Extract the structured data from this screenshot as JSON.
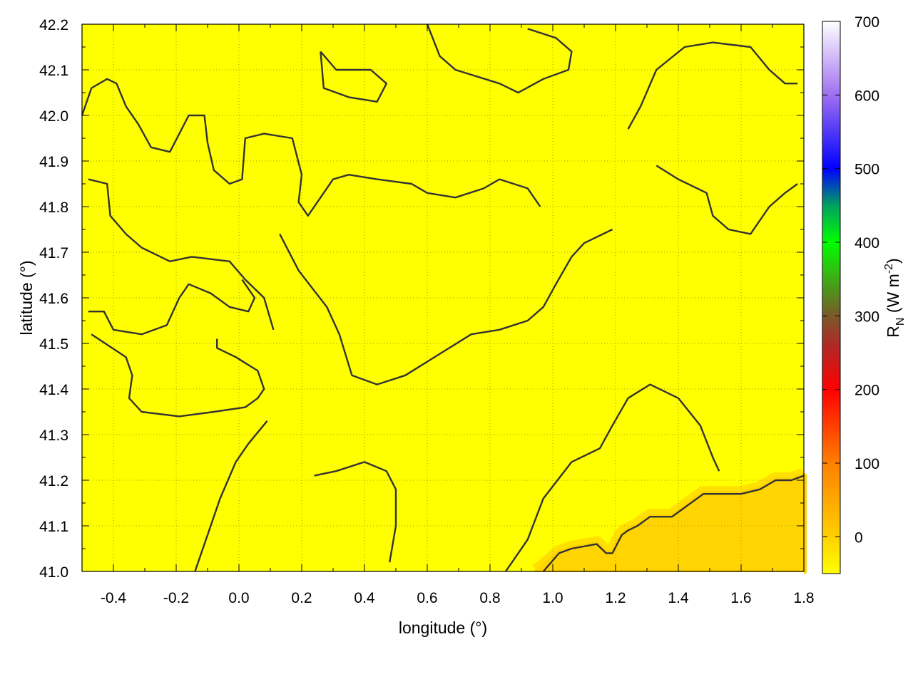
{
  "chart_data": {
    "type": "heatmap",
    "xlabel": "longitude (°)",
    "ylabel": "latitude (°)",
    "colorbar_label": "R",
    "colorbar_label_sub": "N",
    "colorbar_label_units": " (W m",
    "colorbar_label_sup": "-2",
    "colorbar_label_end": ")",
    "xlim": [
      -0.5,
      1.8
    ],
    "ylim": [
      41.0,
      42.2
    ],
    "xticks": [
      "-0.4",
      "-0.2",
      "0.0",
      "0.2",
      "0.4",
      "0.6",
      "0.8",
      "1.0",
      "1.2",
      "1.4",
      "1.6",
      "1.8"
    ],
    "yticks": [
      "41.0",
      "41.1",
      "41.2",
      "41.3",
      "41.4",
      "41.5",
      "41.6",
      "41.7",
      "41.8",
      "41.9",
      "42.0",
      "42.1",
      "42.2"
    ],
    "colorbar_range": [
      -50,
      700
    ],
    "colorbar_ticks": [
      "0",
      "100",
      "200",
      "300",
      "400",
      "500",
      "600",
      "700"
    ],
    "colormap": [
      {
        "v": -50,
        "c": "#ffff00"
      },
      {
        "v": 0,
        "c": "#ffd000"
      },
      {
        "v": 100,
        "c": "#ff8000"
      },
      {
        "v": 200,
        "c": "#ff0000"
      },
      {
        "v": 260,
        "c": "#b02828"
      },
      {
        "v": 300,
        "c": "#7a5a2a"
      },
      {
        "v": 400,
        "c": "#00ff00"
      },
      {
        "v": 450,
        "c": "#00a060"
      },
      {
        "v": 500,
        "c": "#0000ff"
      },
      {
        "v": 600,
        "c": "#a070f0"
      },
      {
        "v": 700,
        "c": "#ffffff"
      }
    ],
    "background_field_color": "#ffff00",
    "low_region_color": "#ffd400",
    "low_region_edge_color": "#ffe000",
    "grid": true,
    "contour_color": "#333333",
    "low_region_boundary": [
      [
        0.95,
        41.0
      ],
      [
        0.97,
        41.01
      ],
      [
        1.02,
        41.04
      ],
      [
        1.06,
        41.05
      ],
      [
        1.14,
        41.06
      ],
      [
        1.17,
        41.04
      ],
      [
        1.19,
        41.04
      ],
      [
        1.22,
        41.08
      ],
      [
        1.24,
        41.09
      ],
      [
        1.27,
        41.1
      ],
      [
        1.31,
        41.12
      ],
      [
        1.38,
        41.12
      ],
      [
        1.42,
        41.14
      ],
      [
        1.48,
        41.17
      ],
      [
        1.6,
        41.17
      ],
      [
        1.66,
        41.18
      ],
      [
        1.71,
        41.2
      ],
      [
        1.76,
        41.2
      ],
      [
        1.8,
        41.21
      ],
      [
        1.8,
        41.0
      ]
    ],
    "contours": [
      [
        [
          -0.5,
          42.0
        ],
        [
          -0.47,
          42.06
        ],
        [
          -0.42,
          42.08
        ],
        [
          -0.39,
          42.07
        ],
        [
          -0.36,
          42.02
        ],
        [
          -0.32,
          41.98
        ],
        [
          -0.28,
          41.93
        ],
        [
          -0.22,
          41.92
        ],
        [
          -0.16,
          42.0
        ],
        [
          -0.11,
          42.0
        ],
        [
          -0.1,
          41.94
        ],
        [
          -0.08,
          41.88
        ],
        [
          -0.03,
          41.85
        ],
        [
          0.01,
          41.86
        ],
        [
          0.02,
          41.95
        ],
        [
          0.08,
          41.96
        ],
        [
          0.17,
          41.95
        ],
        [
          0.2,
          41.87
        ],
        [
          0.19,
          41.81
        ],
        [
          0.22,
          41.78
        ],
        [
          0.26,
          41.82
        ],
        [
          0.3,
          41.86
        ],
        [
          0.35,
          41.87
        ],
        [
          0.44,
          41.86
        ],
        [
          0.55,
          41.85
        ],
        [
          0.6,
          41.83
        ],
        [
          0.69,
          41.82
        ],
        [
          0.78,
          41.84
        ],
        [
          0.83,
          41.86
        ],
        [
          0.92,
          41.84
        ],
        [
          0.96,
          41.8
        ]
      ],
      [
        [
          -0.48,
          41.86
        ],
        [
          -0.42,
          41.85
        ],
        [
          -0.41,
          41.78
        ],
        [
          -0.36,
          41.74
        ],
        [
          -0.31,
          41.71
        ],
        [
          -0.22,
          41.68
        ],
        [
          -0.15,
          41.69
        ],
        [
          -0.03,
          41.68
        ],
        [
          0.02,
          41.64
        ],
        [
          0.08,
          41.6
        ],
        [
          0.11,
          41.53
        ]
      ],
      [
        [
          -0.48,
          41.57
        ],
        [
          -0.43,
          41.57
        ],
        [
          -0.4,
          41.53
        ],
        [
          -0.31,
          41.52
        ],
        [
          -0.23,
          41.54
        ],
        [
          -0.19,
          41.6
        ],
        [
          -0.16,
          41.63
        ],
        [
          -0.09,
          41.61
        ],
        [
          -0.03,
          41.58
        ],
        [
          0.03,
          41.57
        ],
        [
          0.05,
          41.6
        ],
        [
          0.01,
          41.64
        ]
      ],
      [
        [
          -0.47,
          41.52
        ],
        [
          -0.36,
          41.47
        ],
        [
          -0.34,
          41.43
        ],
        [
          -0.35,
          41.38
        ],
        [
          -0.31,
          41.35
        ],
        [
          -0.19,
          41.34
        ],
        [
          -0.08,
          41.35
        ],
        [
          0.02,
          41.36
        ],
        [
          0.06,
          41.38
        ],
        [
          0.08,
          41.4
        ],
        [
          0.06,
          41.44
        ],
        [
          -0.01,
          41.47
        ],
        [
          -0.07,
          41.49
        ],
        [
          -0.07,
          41.51
        ]
      ],
      [
        [
          0.13,
          41.74
        ],
        [
          0.19,
          41.66
        ],
        [
          0.28,
          41.58
        ],
        [
          0.32,
          41.52
        ],
        [
          0.36,
          41.43
        ],
        [
          0.44,
          41.41
        ],
        [
          0.53,
          41.43
        ],
        [
          0.6,
          41.46
        ],
        [
          0.67,
          41.49
        ],
        [
          0.74,
          41.52
        ],
        [
          0.83,
          41.53
        ],
        [
          0.92,
          41.55
        ],
        [
          0.97,
          41.58
        ],
        [
          1.01,
          41.63
        ],
        [
          1.06,
          41.69
        ],
        [
          1.1,
          41.72
        ],
        [
          1.19,
          41.75
        ]
      ],
      [
        [
          0.09,
          41.33
        ],
        [
          0.03,
          41.28
        ],
        [
          -0.01,
          41.24
        ],
        [
          -0.06,
          41.16
        ],
        [
          -0.1,
          41.08
        ],
        [
          -0.14,
          41.0
        ]
      ],
      [
        [
          0.24,
          41.21
        ],
        [
          0.31,
          41.22
        ],
        [
          0.4,
          41.24
        ],
        [
          0.47,
          41.22
        ],
        [
          0.5,
          41.18
        ],
        [
          0.5,
          41.1
        ],
        [
          0.48,
          41.02
        ]
      ],
      [
        [
          0.85,
          41.0
        ],
        [
          0.92,
          41.07
        ],
        [
          0.97,
          41.16
        ],
        [
          1.06,
          41.24
        ],
        [
          1.15,
          41.27
        ],
        [
          1.19,
          41.32
        ],
        [
          1.24,
          41.38
        ],
        [
          1.31,
          41.41
        ],
        [
          1.4,
          41.38
        ],
        [
          1.47,
          41.32
        ],
        [
          1.51,
          41.25
        ],
        [
          1.53,
          41.22
        ]
      ],
      [
        [
          1.24,
          41.97
        ],
        [
          1.28,
          42.02
        ],
        [
          1.33,
          42.1
        ],
        [
          1.42,
          42.15
        ],
        [
          1.51,
          42.16
        ],
        [
          1.63,
          42.15
        ],
        [
          1.69,
          42.1
        ],
        [
          1.74,
          42.07
        ],
        [
          1.78,
          42.07
        ]
      ],
      [
        [
          1.33,
          41.89
        ],
        [
          1.4,
          41.86
        ],
        [
          1.49,
          41.83
        ],
        [
          1.51,
          41.78
        ],
        [
          1.56,
          41.75
        ],
        [
          1.63,
          41.74
        ],
        [
          1.69,
          41.8
        ],
        [
          1.74,
          41.83
        ],
        [
          1.78,
          41.85
        ]
      ],
      [
        [
          0.26,
          42.14
        ],
        [
          0.31,
          42.1
        ],
        [
          0.42,
          42.1
        ],
        [
          0.47,
          42.07
        ],
        [
          0.44,
          42.03
        ],
        [
          0.35,
          42.04
        ],
        [
          0.27,
          42.06
        ],
        [
          0.26,
          42.14
        ]
      ],
      [
        [
          0.6,
          42.2
        ],
        [
          0.64,
          42.13
        ],
        [
          0.69,
          42.1
        ],
        [
          0.83,
          42.07
        ],
        [
          0.89,
          42.05
        ],
        [
          0.97,
          42.08
        ],
        [
          1.05,
          42.1
        ],
        [
          1.06,
          42.14
        ],
        [
          1.01,
          42.17
        ],
        [
          0.92,
          42.19
        ]
      ],
      [
        [
          0.97,
          41.0
        ],
        [
          1.02,
          41.04
        ],
        [
          1.06,
          41.05
        ],
        [
          1.14,
          41.06
        ],
        [
          1.17,
          41.04
        ],
        [
          1.19,
          41.04
        ],
        [
          1.22,
          41.08
        ],
        [
          1.24,
          41.09
        ],
        [
          1.27,
          41.1
        ],
        [
          1.31,
          41.12
        ],
        [
          1.38,
          41.12
        ],
        [
          1.42,
          41.14
        ],
        [
          1.48,
          41.17
        ],
        [
          1.6,
          41.17
        ],
        [
          1.66,
          41.18
        ],
        [
          1.71,
          41.2
        ],
        [
          1.76,
          41.2
        ],
        [
          1.8,
          41.21
        ]
      ]
    ]
  }
}
